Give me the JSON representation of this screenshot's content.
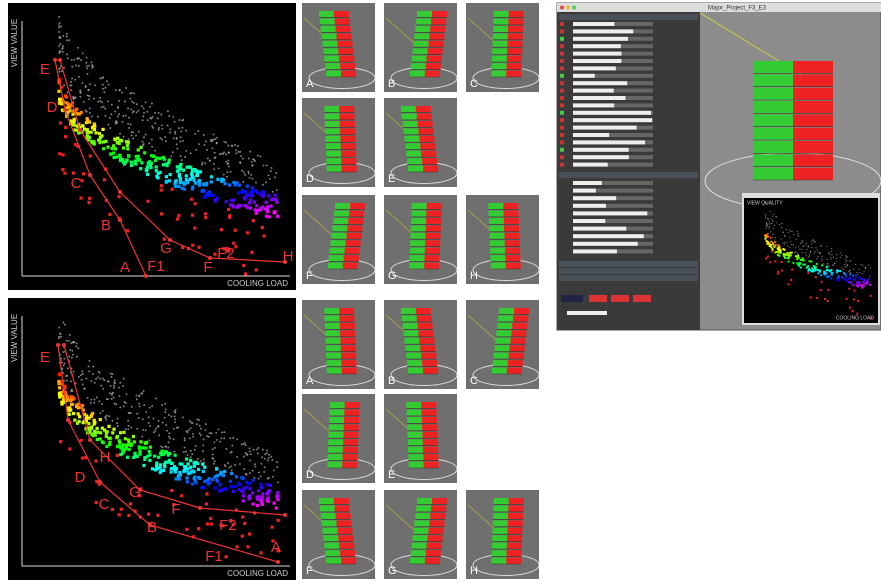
{
  "plots": [
    {
      "y_axis_label": "VIEW VALUE",
      "x_axis_label": "COOLING LOAD",
      "labels": [
        "E",
        "D",
        "C",
        "B",
        "A",
        "F1",
        "G",
        "F",
        "F2",
        "H"
      ]
    },
    {
      "y_axis_label": "VIEW VALUE",
      "x_axis_label": "COOLING LOAD",
      "labels": [
        "E",
        "H",
        "D",
        "G",
        "C",
        "F",
        "B",
        "F2",
        "F1",
        "A"
      ]
    }
  ],
  "thumbnails": [
    [
      "A",
      "B",
      "C",
      "D",
      "E",
      "F",
      "G",
      "H"
    ],
    [
      "A",
      "B",
      "C",
      "D",
      "E",
      "F",
      "G",
      "H"
    ]
  ],
  "ui": {
    "window_title": "Major_Project_F3_E3",
    "inset_y_label": "VIEW QUALITY",
    "inset_x_label": "COOLING LOAD"
  }
}
